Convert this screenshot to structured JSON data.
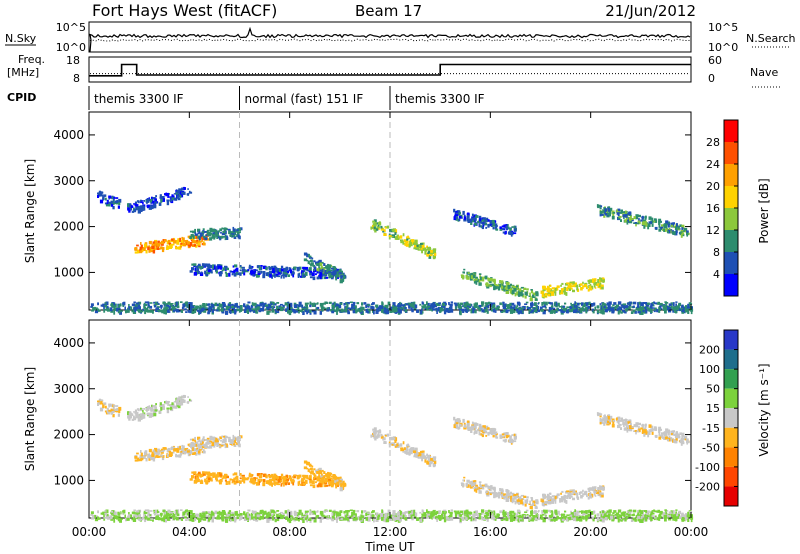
{
  "header": {
    "title": "Fort Hays West (fitACF)",
    "beam": "Beam 17",
    "date": "21/Jun/2012"
  },
  "noise_panel": {
    "left_label": "N.Sky",
    "right_label": "N.Search",
    "left_ticks": [
      "10^5",
      "10^0"
    ],
    "right_ticks": [
      "10^5",
      "10^0"
    ]
  },
  "freq_panel": {
    "left_label_1": "Freq.",
    "left_label_2": "[MHz]",
    "right_label": "Nave",
    "left_ticks": [
      "18",
      "8"
    ],
    "right_ticks": [
      "60",
      "0"
    ],
    "freq_steps": [
      {
        "t_start": 0.0,
        "t_end": 1.3,
        "value": 10.5
      },
      {
        "t_start": 1.3,
        "t_end": 1.9,
        "value": 15.0
      },
      {
        "t_start": 1.9,
        "t_end": 14.0,
        "value": 10.8
      },
      {
        "t_start": 14.0,
        "t_end": 24.0,
        "value": 15.0
      }
    ],
    "nave_level": 20
  },
  "cpid": {
    "label": "CPID",
    "segments": [
      {
        "t_start": 0,
        "t_end": 6,
        "text": "themis 3300 IF"
      },
      {
        "t_start": 6,
        "t_end": 12,
        "text": "normal (fast) 151 IF"
      },
      {
        "t_start": 12,
        "t_end": 24,
        "text": "themis 3300 IF"
      }
    ]
  },
  "axes": {
    "ylabel": "Slant Range [km]",
    "xlabel": "Time UT",
    "y_ticks": [
      1000,
      2000,
      3000,
      4000
    ],
    "ylim": [
      180,
      4500
    ],
    "x_ticks": [
      "00:00",
      "04:00",
      "08:00",
      "12:00",
      "16:00",
      "20:00",
      "00:00"
    ],
    "xlim": [
      0,
      24
    ]
  },
  "power_colorbar": {
    "label": "Power [dB]",
    "ticks": [
      "28",
      "24",
      "20",
      "16",
      "12",
      "8",
      "4"
    ],
    "colors": [
      "#ff0000",
      "#ff5000",
      "#ffa000",
      "#ffd200",
      "#8cc83c",
      "#2d8c6e",
      "#1e50b4",
      "#0000ff"
    ]
  },
  "velocity_colorbar": {
    "label": "Velocity [m s⁻¹]",
    "ticks": [
      "200",
      "100",
      "50",
      "15",
      "-15",
      "-50",
      "-100",
      "-200"
    ],
    "colors": [
      "#2838c8",
      "#1e6e8c",
      "#32a050",
      "#7cd23c",
      "#c8c8c8",
      "#ffb41e",
      "#ff8200",
      "#ff4600",
      "#e60000"
    ]
  },
  "chart_data": {
    "type": "heatmap",
    "x_units": "hours UT",
    "y_units": "km",
    "scatter_features": [
      {
        "t_start": 1.8,
        "t_end": 4.7,
        "r_start": 1550,
        "r_end": 1750,
        "power_db": 22,
        "velocity": -10
      },
      {
        "t_start": 4.0,
        "t_end": 6.0,
        "r_start": 1850,
        "r_end": 1900,
        "power_db": 8,
        "velocity": -5
      },
      {
        "t_start": 0.3,
        "t_end": 1.2,
        "r_start": 2700,
        "r_end": 2500,
        "power_db": 6,
        "velocity": -10
      },
      {
        "t_start": 1.5,
        "t_end": 4.0,
        "r_start": 2400,
        "r_end": 2800,
        "power_db": 5,
        "velocity": 5
      },
      {
        "t_start": 4.0,
        "t_end": 10.0,
        "r_start": 1100,
        "r_end": 1000,
        "power_db": 6,
        "velocity": -40
      },
      {
        "t_start": 8.5,
        "t_end": 10.2,
        "r_start": 1350,
        "r_end": 900,
        "power_db": 9,
        "velocity": -30
      },
      {
        "t_start": 11.2,
        "t_end": 13.8,
        "r_start": 2100,
        "r_end": 1400,
        "power_db": 14,
        "velocity": -5
      },
      {
        "t_start": 14.5,
        "t_end": 17.0,
        "r_start": 2300,
        "r_end": 1900,
        "power_db": 6,
        "velocity": -5
      },
      {
        "t_start": 14.8,
        "t_end": 17.8,
        "r_start": 1000,
        "r_end": 500,
        "power_db": 12,
        "velocity": -5
      },
      {
        "t_start": 18.0,
        "t_end": 20.5,
        "r_start": 600,
        "r_end": 800,
        "power_db": 16,
        "velocity": -5
      },
      {
        "t_start": 20.2,
        "t_end": 23.9,
        "r_start": 2400,
        "r_end": 1900,
        "power_db": 10,
        "velocity": -5
      },
      {
        "t_start": 0.0,
        "t_end": 24.0,
        "r_start": 260,
        "r_end": 260,
        "power_db": 8,
        "velocity": 20
      }
    ]
  }
}
